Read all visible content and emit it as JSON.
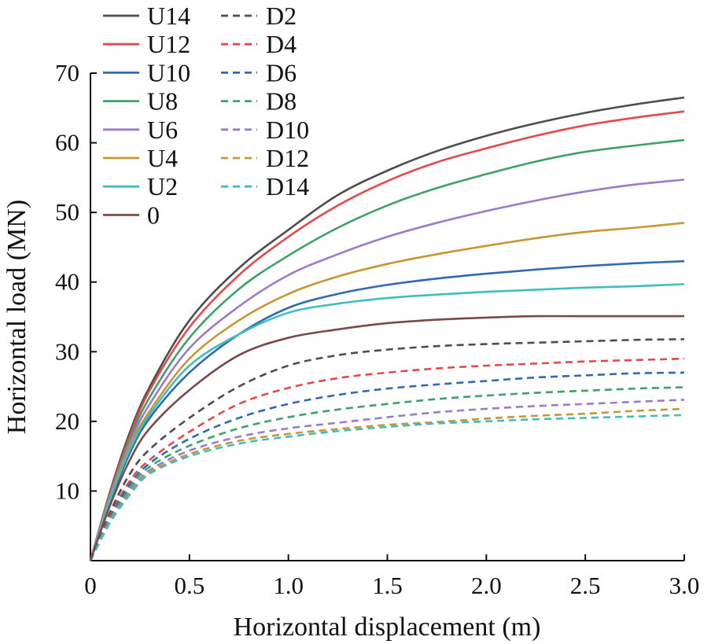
{
  "chart_data": {
    "type": "line",
    "title": "",
    "xlabel": "Horizontal displacement (m)",
    "ylabel": "Horizontal load (MN)",
    "xlim": [
      0,
      3.0
    ],
    "ylim": [
      0,
      70
    ],
    "xticks": [
      0,
      0.5,
      1.0,
      1.5,
      2.0,
      2.5,
      3.0
    ],
    "xtick_labels": [
      "0",
      "0.5",
      "1.0",
      "1.5",
      "2.0",
      "2.5",
      "3.0"
    ],
    "yticks": [
      10,
      20,
      30,
      40,
      50,
      60,
      70
    ],
    "ytick_labels": [
      "10",
      "20",
      "30",
      "40",
      "50",
      "60",
      "70"
    ],
    "grid": false,
    "legend_position": "top-left",
    "x": [
      0,
      0.1,
      0.2,
      0.3,
      0.5,
      0.75,
      1.0,
      1.25,
      1.5,
      1.75,
      2.0,
      2.25,
      2.5,
      2.75,
      3.0
    ],
    "series": [
      {
        "name": "U14",
        "color": "#4d4d4d",
        "dash": false,
        "values": [
          0,
          10.0,
          18.5,
          25.0,
          34.5,
          42.0,
          47.5,
          52.5,
          56.0,
          58.8,
          61.0,
          62.8,
          64.3,
          65.5,
          66.5
        ]
      },
      {
        "name": "U12",
        "color": "#e34a4a",
        "dash": false,
        "values": [
          0,
          9.8,
          18.0,
          24.5,
          33.5,
          41.0,
          46.5,
          51.0,
          54.5,
          57.2,
          59.2,
          61.0,
          62.5,
          63.6,
          64.5
        ]
      },
      {
        "name": "U10",
        "color": "#2f6bb5",
        "dash": false,
        "values": [
          0,
          8.5,
          15.5,
          20.5,
          27.0,
          32.5,
          36.3,
          38.3,
          39.6,
          40.5,
          41.2,
          41.8,
          42.3,
          42.7,
          43.0
        ]
      },
      {
        "name": "U8",
        "color": "#3fa168",
        "dash": false,
        "values": [
          0,
          9.5,
          17.5,
          23.5,
          32.0,
          39.0,
          43.8,
          47.8,
          51.0,
          53.5,
          55.5,
          57.3,
          58.7,
          59.6,
          60.4
        ]
      },
      {
        "name": "U6",
        "color": "#9a7cc8",
        "dash": false,
        "values": [
          0,
          9.3,
          17.0,
          22.5,
          30.5,
          36.5,
          41.0,
          44.0,
          46.5,
          48.5,
          50.2,
          51.7,
          53.0,
          54.0,
          54.7
        ]
      },
      {
        "name": "U4",
        "color": "#c89632",
        "dash": false,
        "values": [
          0,
          9.0,
          16.5,
          21.5,
          29.0,
          34.5,
          38.3,
          40.8,
          42.6,
          44.0,
          45.2,
          46.3,
          47.2,
          47.8,
          48.5
        ]
      },
      {
        "name": "U2",
        "color": "#3fbebe",
        "dash": false,
        "values": [
          0,
          8.8,
          16.0,
          21.0,
          28.0,
          32.5,
          35.6,
          36.9,
          37.7,
          38.2,
          38.6,
          38.9,
          39.2,
          39.4,
          39.7
        ]
      },
      {
        "name": "0",
        "color": "#7a4a4a",
        "dash": false,
        "values": [
          0,
          8.0,
          14.5,
          19.0,
          24.5,
          29.5,
          32.0,
          33.2,
          34.1,
          34.6,
          34.9,
          35.1,
          35.1,
          35.1,
          35.1
        ]
      },
      {
        "name": "D2",
        "color": "#4d4d4d",
        "dash": true,
        "values": [
          0,
          7.0,
          12.5,
          16.0,
          20.5,
          25.0,
          28.0,
          29.5,
          30.3,
          30.8,
          31.1,
          31.3,
          31.5,
          31.7,
          31.8
        ]
      },
      {
        "name": "D4",
        "color": "#e34a4a",
        "dash": true,
        "values": [
          0,
          6.5,
          11.5,
          14.5,
          18.5,
          22.5,
          24.8,
          26.2,
          27.0,
          27.6,
          28.0,
          28.3,
          28.6,
          28.8,
          29.0
        ]
      },
      {
        "name": "D6",
        "color": "#2f6bb5",
        "dash": true,
        "values": [
          0,
          6.2,
          11.0,
          14.0,
          17.5,
          20.5,
          22.5,
          23.8,
          24.7,
          25.3,
          25.8,
          26.3,
          26.6,
          26.9,
          27.0
        ]
      },
      {
        "name": "D8",
        "color": "#3fa168",
        "dash": true,
        "values": [
          0,
          6.0,
          10.5,
          13.5,
          16.5,
          19.0,
          20.6,
          21.7,
          22.5,
          23.2,
          23.7,
          24.1,
          24.4,
          24.7,
          24.9
        ]
      },
      {
        "name": "D10",
        "color": "#9a7cc8",
        "dash": true,
        "values": [
          0,
          5.8,
          10.0,
          13.0,
          15.8,
          17.8,
          19.0,
          19.8,
          20.6,
          21.3,
          21.8,
          22.2,
          22.5,
          22.8,
          23.1
        ]
      },
      {
        "name": "D12",
        "color": "#c89632",
        "dash": true,
        "values": [
          0,
          5.6,
          9.7,
          12.7,
          15.3,
          17.2,
          18.2,
          18.9,
          19.5,
          19.9,
          20.4,
          20.8,
          21.1,
          21.5,
          21.8
        ]
      },
      {
        "name": "D14",
        "color": "#3fbebe",
        "dash": true,
        "values": [
          0,
          5.5,
          9.5,
          12.5,
          15.0,
          16.8,
          17.8,
          18.6,
          19.2,
          19.7,
          20.0,
          20.3,
          20.5,
          20.7,
          20.9
        ]
      }
    ],
    "legend_col1": [
      "U14",
      "U12",
      "U10",
      "U8",
      "U6",
      "U4",
      "U2",
      "0"
    ],
    "legend_col2": [
      "D2",
      "D4",
      "D6",
      "D8",
      "D10",
      "D12",
      "D14"
    ]
  }
}
